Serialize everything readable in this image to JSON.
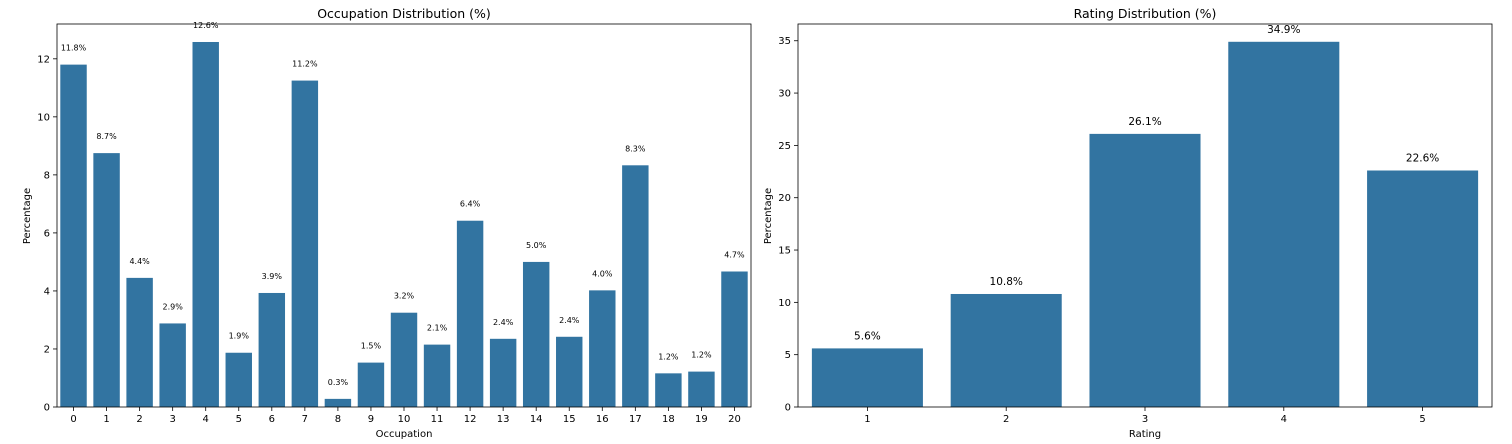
{
  "chart_data": [
    {
      "type": "bar",
      "title": "Occupation Distribution (%)",
      "xlabel": "Occupation",
      "ylabel": "Percentage",
      "categories": [
        "0",
        "1",
        "2",
        "3",
        "4",
        "5",
        "6",
        "7",
        "8",
        "9",
        "10",
        "11",
        "12",
        "13",
        "14",
        "15",
        "16",
        "17",
        "18",
        "19",
        "20"
      ],
      "values": [
        11.8,
        8.75,
        4.45,
        2.88,
        12.58,
        1.87,
        3.93,
        11.25,
        0.28,
        1.53,
        3.25,
        2.15,
        6.42,
        2.35,
        5.0,
        2.42,
        4.02,
        8.33,
        1.16,
        1.22,
        4.67
      ],
      "data_labels": [
        "11.8%",
        "8.7%",
        "4.4%",
        "2.9%",
        "12.6%",
        "1.9%",
        "3.9%",
        "11.2%",
        "0.3%",
        "1.5%",
        "3.2%",
        "2.1%",
        "6.4%",
        "2.4%",
        "5.0%",
        "2.4%",
        "4.0%",
        "8.3%",
        "1.2%",
        "1.2%",
        "4.7%"
      ],
      "yticks": [
        "0",
        "2",
        "4",
        "6",
        "8",
        "10",
        "12"
      ],
      "ylim": [
        0,
        13.2
      ],
      "bar_color": "#3274a1",
      "grid": false,
      "legend": false
    },
    {
      "type": "bar",
      "title": "Rating Distribution (%)",
      "xlabel": "Rating",
      "ylabel": "Percentage",
      "categories": [
        "1",
        "2",
        "3",
        "4",
        "5"
      ],
      "values": [
        5.6,
        10.8,
        26.1,
        34.9,
        22.6
      ],
      "data_labels": [
        "5.6%",
        "10.8%",
        "26.1%",
        "34.9%",
        "22.6%"
      ],
      "yticks": [
        "0",
        "5",
        "10",
        "15",
        "20",
        "25",
        "30",
        "35"
      ],
      "ylim": [
        0,
        36.6
      ],
      "bar_color": "#3274a1",
      "grid": false,
      "legend": false
    }
  ]
}
